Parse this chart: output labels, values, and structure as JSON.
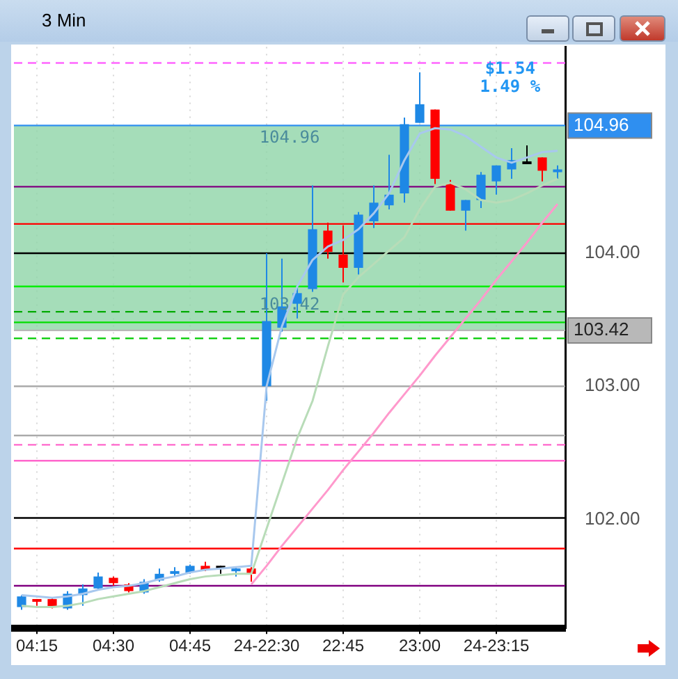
{
  "chart_data": {
    "type": "candlestick",
    "title": "3 Min",
    "categories": [
      null,
      "04:15",
      null,
      null,
      null,
      null,
      "04:30",
      null,
      null,
      null,
      null,
      "04:45",
      null,
      null,
      null,
      null,
      "24-22:30",
      null,
      null,
      null,
      null,
      "22:45",
      null,
      null,
      null,
      null,
      "23:00",
      null,
      null,
      null,
      null,
      "24-23:15",
      null,
      null,
      null,
      null
    ],
    "ohlc": [
      [
        101.34,
        101.43,
        101.32,
        101.42
      ],
      [
        101.39,
        101.4,
        101.35,
        101.39
      ],
      [
        101.4,
        101.41,
        101.33,
        101.34
      ],
      [
        101.33,
        101.46,
        101.32,
        101.44
      ],
      [
        101.43,
        101.51,
        101.35,
        101.48
      ],
      [
        101.48,
        101.6,
        101.47,
        101.57
      ],
      [
        101.56,
        101.57,
        101.5,
        101.52
      ],
      [
        101.51,
        101.52,
        101.45,
        101.46
      ],
      [
        101.45,
        101.55,
        101.44,
        101.53
      ],
      [
        101.54,
        101.63,
        101.53,
        101.59
      ],
      [
        101.6,
        101.64,
        101.57,
        101.6
      ],
      [
        101.6,
        101.66,
        101.59,
        101.65
      ],
      [
        101.65,
        101.68,
        101.61,
        101.62
      ],
      [
        101.64,
        101.65,
        101.59,
        101.64
      ],
      [
        101.61,
        101.64,
        101.57,
        101.63
      ],
      [
        101.63,
        101.64,
        101.53,
        101.59
      ],
      [
        103.0,
        104.0,
        102.89,
        103.49
      ],
      [
        103.44,
        103.96,
        103.41,
        103.6
      ],
      [
        103.62,
        103.74,
        103.51,
        103.7
      ],
      [
        103.73,
        104.51,
        103.71,
        104.18
      ],
      [
        104.17,
        104.23,
        103.96,
        104.01
      ],
      [
        103.99,
        104.21,
        103.78,
        103.89
      ],
      [
        103.89,
        104.31,
        103.84,
        104.29
      ],
      [
        104.24,
        104.51,
        104.19,
        104.38
      ],
      [
        104.36,
        104.74,
        104.33,
        104.44
      ],
      [
        104.45,
        105.02,
        104.38,
        104.97
      ],
      [
        104.98,
        105.36,
        104.98,
        105.12
      ],
      [
        105.08,
        105.08,
        104.52,
        104.56
      ],
      [
        104.52,
        104.55,
        104.32,
        104.32
      ],
      [
        104.32,
        104.4,
        104.17,
        104.4
      ],
      [
        104.4,
        104.61,
        104.34,
        104.59
      ],
      [
        104.54,
        104.66,
        104.44,
        104.66
      ],
      [
        104.63,
        104.79,
        104.56,
        104.7
      ],
      [
        104.68,
        104.81,
        104.67,
        104.68
      ],
      [
        104.72,
        104.72,
        104.54,
        104.62
      ],
      [
        104.62,
        104.66,
        104.56,
        104.63
      ]
    ],
    "colors": [
      "#1e88e5",
      "#ff0000",
      "#ff0000",
      "#1e88e5",
      "#1e88e5",
      "#1e88e5",
      "#ff0000",
      "#ff0000",
      "#1e88e5",
      "#1e88e5",
      "#1e88e5",
      "#1e88e5",
      "#ff0000",
      "#000000",
      "#1e88e5",
      "#ff0000",
      "#1e88e5",
      "#1e88e5",
      "#1e88e5",
      "#1e88e5",
      "#ff0000",
      "#ff0000",
      "#1e88e5",
      "#1e88e5",
      "#1e88e5",
      "#1e88e5",
      "#1e88e5",
      "#ff0000",
      "#ff0000",
      "#1e88e5",
      "#1e88e5",
      "#1e88e5",
      "#1e88e5",
      "#000000",
      "#ff0000",
      "#1e88e5"
    ],
    "series": [
      {
        "type": "line",
        "color": "#a8c8ee",
        "values": [
          101.43,
          101.42,
          101.41,
          101.42,
          101.44,
          101.47,
          101.49,
          101.5,
          101.52,
          101.55,
          101.57,
          101.6,
          101.62,
          101.63,
          101.64,
          101.65,
          103.0,
          103.45,
          103.75,
          103.95,
          104.05,
          104.1,
          104.18,
          104.3,
          104.45,
          104.7,
          104.9,
          104.94,
          104.93,
          104.88,
          104.8,
          104.72,
          104.68,
          104.72,
          104.76,
          104.77
        ]
      },
      {
        "type": "line",
        "color": "#b8dcb8",
        "values": [
          101.35,
          101.34,
          101.34,
          101.35,
          101.37,
          101.4,
          101.42,
          101.44,
          101.46,
          101.49,
          101.52,
          101.55,
          101.57,
          101.58,
          101.59,
          101.59,
          101.93,
          102.27,
          102.61,
          102.89,
          103.3,
          103.69,
          103.82,
          103.92,
          104.02,
          104.12,
          104.33,
          104.5,
          104.53,
          104.48,
          104.4,
          104.38,
          104.4,
          104.45,
          104.51,
          104.56
        ]
      },
      {
        "type": "line",
        "color": "#ff99cc",
        "values": [
          null,
          null,
          null,
          null,
          null,
          null,
          null,
          null,
          null,
          null,
          null,
          null,
          null,
          null,
          null,
          101.51,
          101.65,
          101.8,
          101.94,
          102.08,
          102.22,
          102.37,
          102.51,
          102.65,
          102.8,
          102.94,
          103.08,
          103.23,
          103.37,
          103.51,
          103.65,
          103.8,
          103.94,
          104.08,
          104.23,
          104.37
        ]
      }
    ],
    "ref_lines": [
      {
        "axis": "y",
        "value": 105.43,
        "color": "#ff66ff",
        "line_style": "dashed"
      },
      {
        "axis": "y",
        "value": 104.96,
        "label": "104.96",
        "color": "#2f8ff0"
      },
      {
        "axis": "y",
        "value": 104.5,
        "color": "#800080"
      },
      {
        "axis": "y",
        "value": 104.22,
        "color": "#ff0000"
      },
      {
        "axis": "y",
        "value": 104.0,
        "color": "#000000"
      },
      {
        "axis": "y",
        "value": 103.75,
        "color": "#00ee00"
      },
      {
        "axis": "y",
        "value": 103.56,
        "color": "#00aa00",
        "line_style": "dashed"
      },
      {
        "axis": "y",
        "value": 103.48,
        "color": "#00dd00"
      },
      {
        "axis": "y",
        "value": 103.42,
        "label": "103.42",
        "color": "#b8b8b8"
      },
      {
        "axis": "y",
        "value": 103.36,
        "color": "#00cc00",
        "line_style": "dashed"
      },
      {
        "axis": "y",
        "value": 103.0,
        "color": "#aaaaaa"
      },
      {
        "axis": "y",
        "value": 102.63,
        "color": "#aaaaaa"
      },
      {
        "axis": "y",
        "value": 102.56,
        "color": "#ff66cc",
        "line_style": "dashed"
      },
      {
        "axis": "y",
        "value": 102.44,
        "color": "#ff66cc"
      },
      {
        "axis": "y",
        "value": 102.01,
        "color": "#000000"
      },
      {
        "axis": "y",
        "value": 101.78,
        "color": "#ff0000"
      },
      {
        "axis": "y",
        "value": 101.5,
        "color": "#800080"
      }
    ],
    "bands": [
      {
        "axis": "y",
        "from": 103.42,
        "to": 104.96,
        "color": "#8fd4a8"
      }
    ],
    "annotations": [
      {
        "text": "104.96",
        "y": 104.96
      },
      {
        "text": "103.42",
        "y": 103.42
      },
      "$1.54",
      "1.49 %"
    ],
    "ylim": [
      101.18,
      105.55
    ],
    "yticks": [
      {
        "value": 102,
        "label": "102.00"
      },
      {
        "value": 103,
        "label": "103.00"
      },
      {
        "value": 104,
        "label": "104.00"
      }
    ],
    "grid": "x",
    "legend": false
  }
}
